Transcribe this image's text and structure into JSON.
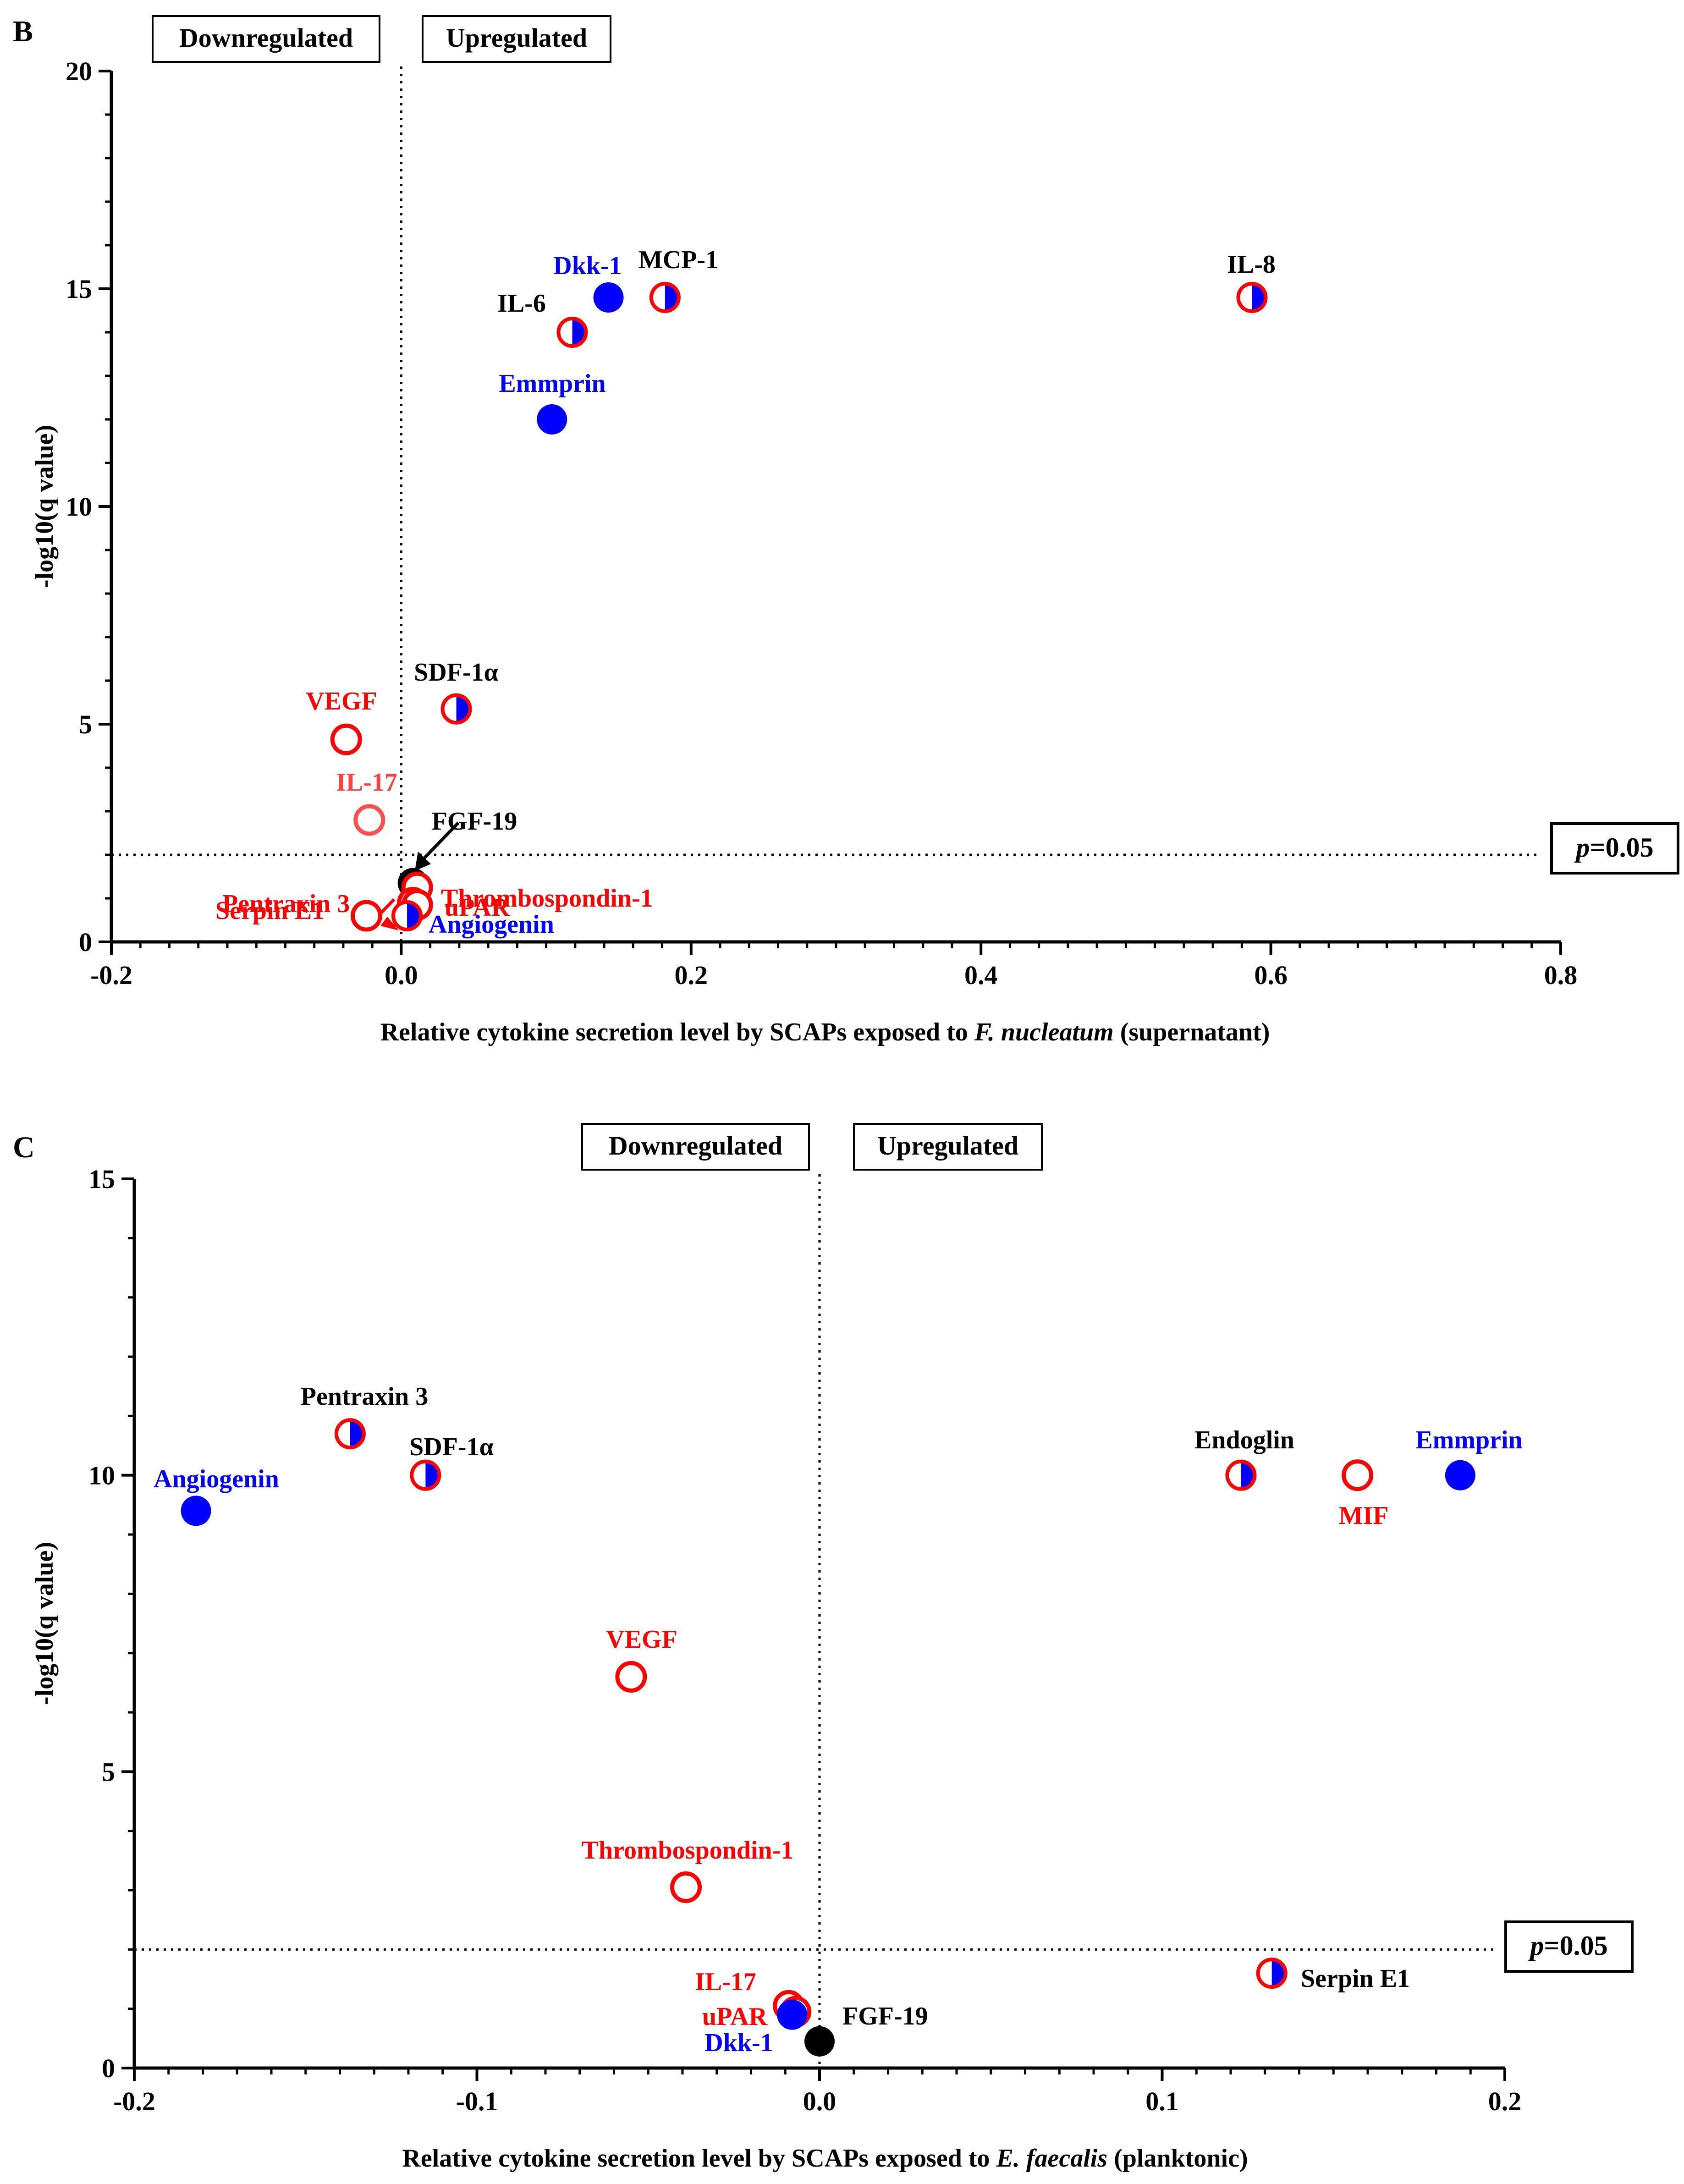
{
  "chart_data": [
    {
      "type": "scatter",
      "panel_label": "B",
      "title": "",
      "xlabel_prefix": "Relative cytokine secretion level by SCAPs exposed to ",
      "xlabel_italic": "F. nucleatum",
      "xlabel_suffix": " (supernatant)",
      "ylabel": "-log10(q value)",
      "xlim": [
        -0.2,
        0.8
      ],
      "ylim": [
        0,
        20
      ],
      "xticks": [
        -0.2,
        0.0,
        0.2,
        0.4,
        0.6,
        0.8
      ],
      "xtick_labels": [
        "-0.2",
        "0.0",
        "0.2",
        "0.4",
        "0.6",
        "0.8"
      ],
      "yticks": [
        0,
        5,
        10,
        15,
        20
      ],
      "ytick_labels": [
        "0",
        "5",
        "10",
        "15",
        "20"
      ],
      "x_minor_step": 0.02,
      "y_minor_step": 1,
      "threshold_y": 2,
      "threshold_label_italic": "p",
      "threshold_label_rest": "=0.05",
      "down_label": "Downregulated",
      "up_label": "Upregulated",
      "points": [
        {
          "name": "IL-8",
          "x": 0.587,
          "y": 14.8,
          "style": "half",
          "label_color": "#000000"
        },
        {
          "name": "MCP-1",
          "x": 0.182,
          "y": 14.8,
          "style": "half",
          "label_color": "#000000"
        },
        {
          "name": "Dkk-1",
          "x": 0.143,
          "y": 14.8,
          "style": "blue",
          "label_color": "#0000ff"
        },
        {
          "name": "IL-6",
          "x": 0.118,
          "y": 14.0,
          "style": "half",
          "label_color": "#000000"
        },
        {
          "name": "Emmprin",
          "x": 0.104,
          "y": 12.0,
          "style": "blue",
          "label_color": "#0000ff"
        },
        {
          "name": "SDF-1α",
          "x": 0.038,
          "y": 5.35,
          "style": "half",
          "label_color": "#000000"
        },
        {
          "name": "VEGF",
          "x": -0.038,
          "y": 4.65,
          "style": "red",
          "label_color": "#ff0000"
        },
        {
          "name": "IL-17",
          "x": -0.022,
          "y": 2.8,
          "style": "redlight",
          "label_color": "#ff4040"
        },
        {
          "name": "FGF-19",
          "x": 0.008,
          "y": 1.35,
          "style": "black",
          "label_color": "#000000"
        },
        {
          "name": "uPAR",
          "x": 0.011,
          "y": 1.25,
          "style": "red",
          "label_color": "#ff0000"
        },
        {
          "name": "Pentraxin 3",
          "x": 0.008,
          "y": 0.9,
          "style": "red",
          "label_color": "#ff0000"
        },
        {
          "name": "Thrombospondin-1",
          "x": 0.011,
          "y": 0.85,
          "style": "red",
          "label_color": "#ff0000"
        },
        {
          "name": "Serpin E1",
          "x": -0.024,
          "y": 0.6,
          "style": "red",
          "label_color": "#ff0000"
        },
        {
          "name": "Angiogenin",
          "x": 0.004,
          "y": 0.6,
          "style": "half",
          "label_color": "#0000ff"
        }
      ]
    },
    {
      "type": "scatter",
      "panel_label": "C",
      "title": "",
      "xlabel_prefix": "Relative cytokine secretion level by SCAPs exposed to ",
      "xlabel_italic": "E. faecalis",
      "xlabel_suffix": " (planktonic)",
      "ylabel": "-log10(q value)",
      "xlim": [
        -0.2,
        0.2
      ],
      "ylim": [
        0,
        15
      ],
      "xticks": [
        -0.2,
        -0.1,
        0.0,
        0.1,
        0.2
      ],
      "xtick_labels": [
        "-0.2",
        "-0.1",
        "0.0",
        "0.1",
        "0.2"
      ],
      "yticks": [
        0,
        5,
        10,
        15
      ],
      "ytick_labels": [
        "0",
        "5",
        "10",
        "15"
      ],
      "x_minor_step": 0.01,
      "y_minor_step": 1,
      "threshold_y": 2,
      "threshold_label_italic": "p",
      "threshold_label_rest": "=0.05",
      "down_label": "Downregulated",
      "up_label": "Upregulated",
      "points": [
        {
          "name": "Angiogenin",
          "x": -0.182,
          "y": 9.4,
          "style": "blue",
          "label_color": "#0000ff"
        },
        {
          "name": "Pentraxin 3",
          "x": -0.137,
          "y": 10.7,
          "style": "half",
          "label_color": "#000000"
        },
        {
          "name": "SDF-1α",
          "x": -0.115,
          "y": 10.0,
          "style": "half",
          "label_color": "#000000"
        },
        {
          "name": "VEGF",
          "x": -0.055,
          "y": 6.6,
          "style": "red",
          "label_color": "#ff0000"
        },
        {
          "name": "Thrombospondin-1",
          "x": -0.039,
          "y": 3.05,
          "style": "red",
          "label_color": "#ff0000"
        },
        {
          "name": "IL-17",
          "x": -0.009,
          "y": 1.05,
          "style": "red",
          "label_color": "#ff0000"
        },
        {
          "name": "uPAR",
          "x": -0.007,
          "y": 0.95,
          "style": "red",
          "label_color": "#ff0000"
        },
        {
          "name": "Dkk-1",
          "x": -0.008,
          "y": 0.9,
          "style": "blue",
          "label_color": "#0000ff"
        },
        {
          "name": "FGF-19",
          "x": 0.0,
          "y": 0.45,
          "style": "black",
          "label_color": "#000000"
        },
        {
          "name": "Endoglin",
          "x": 0.123,
          "y": 10.0,
          "style": "half",
          "label_color": "#000000"
        },
        {
          "name": "MIF",
          "x": 0.157,
          "y": 10.0,
          "style": "red",
          "label_color": "#ff0000"
        },
        {
          "name": "Emmprin",
          "x": 0.187,
          "y": 10.0,
          "style": "blue",
          "label_color": "#0000ff"
        },
        {
          "name": "Serpin E1",
          "x": 0.132,
          "y": 1.6,
          "style": "half",
          "label_color": "#000000"
        }
      ]
    }
  ],
  "colors": {
    "red": "#ff0000",
    "blue": "#0000ff",
    "black": "#000000",
    "redlight": "#ff5050"
  }
}
